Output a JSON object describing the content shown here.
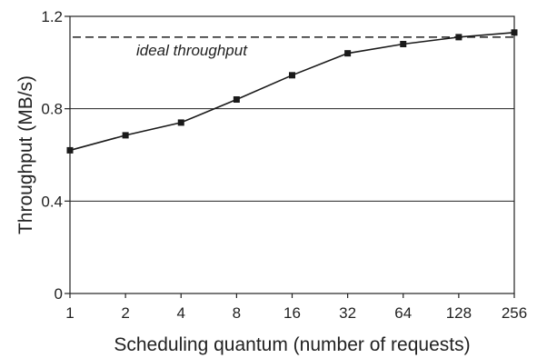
{
  "chart_data": {
    "type": "line",
    "title": "",
    "xlabel": "Scheduling quantum (number of requests)",
    "ylabel": "Throughput (MB/s)",
    "categories": [
      "1",
      "2",
      "4",
      "8",
      "16",
      "32",
      "64",
      "128",
      "256"
    ],
    "series": [
      {
        "values": [
          0.62,
          0.685,
          0.74,
          0.84,
          0.945,
          1.04,
          1.08,
          1.11,
          1.13
        ],
        "color": "#1a1a1a",
        "marker": "square"
      }
    ],
    "ylim": [
      0,
      1.2
    ],
    "yticks": [
      0,
      0.4,
      0.8,
      1.2
    ],
    "ytick_labels": [
      "0",
      "0.4",
      "0.8",
      "1.2"
    ],
    "grid": "horizontal",
    "reference_line": {
      "label": "ideal throughput",
      "value": 1.11,
      "style": "dashed"
    },
    "legend": "none"
  }
}
